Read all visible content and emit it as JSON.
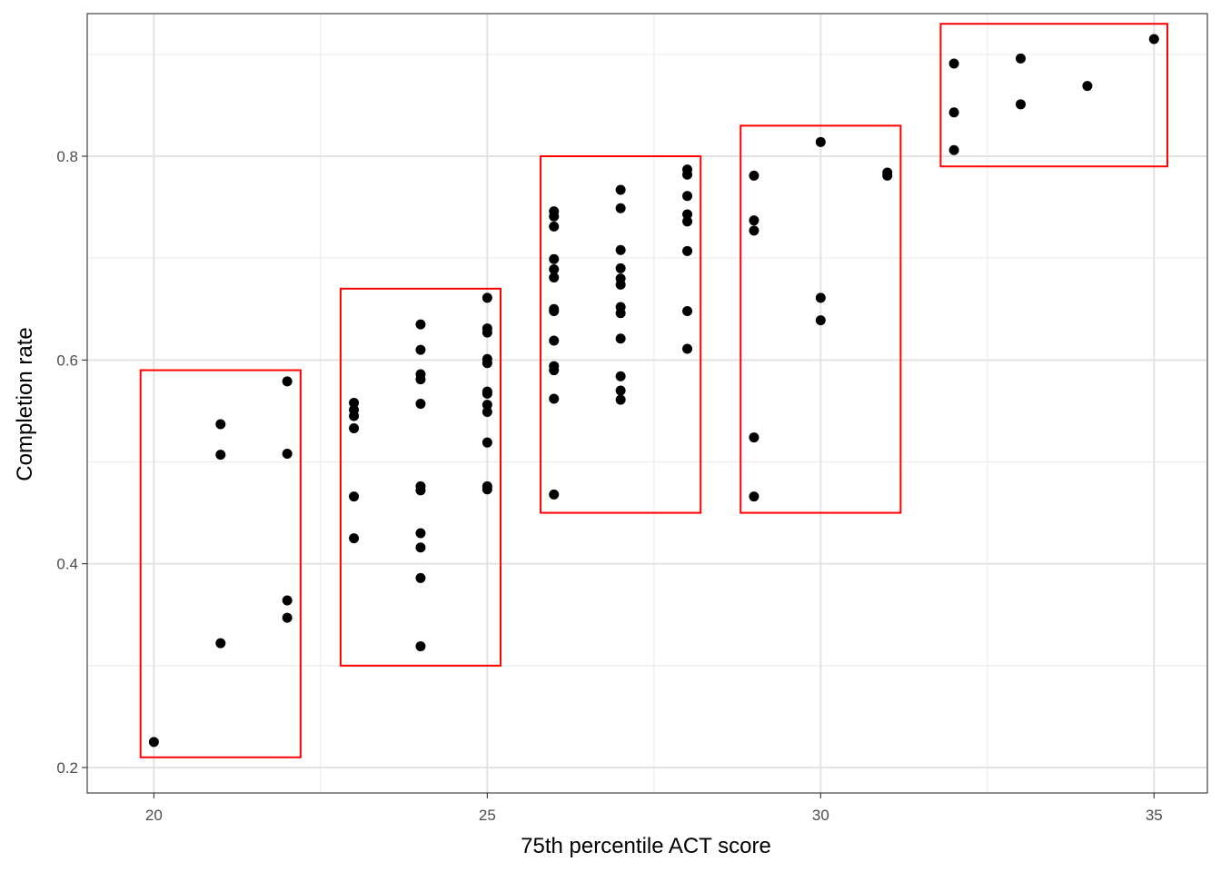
{
  "chart_data": {
    "type": "scatter",
    "title": "",
    "xlabel": "75th percentile ACT score",
    "ylabel": "Completion rate",
    "xlim": [
      19.0,
      35.8
    ],
    "ylim": [
      0.175,
      0.94
    ],
    "grid": true,
    "x_ticks": [
      20,
      25,
      30,
      35
    ],
    "x_tick_labels": [
      "20",
      "25",
      "30",
      "35"
    ],
    "x_minor_ticks": [
      22.5,
      27.5,
      32.5
    ],
    "y_ticks": [
      0.2,
      0.4,
      0.6,
      0.8
    ],
    "y_tick_labels": [
      "0.2",
      "0.4",
      "0.6",
      "0.8"
    ],
    "y_minor_ticks": [
      0.3,
      0.5,
      0.7,
      0.9
    ],
    "point_color": "#000000",
    "box_color": "#ff0000",
    "points": [
      [
        20,
        0.225
      ],
      [
        21,
        0.537
      ],
      [
        21,
        0.507
      ],
      [
        21,
        0.322
      ],
      [
        22,
        0.579
      ],
      [
        22,
        0.508
      ],
      [
        22,
        0.364
      ],
      [
        22,
        0.347
      ],
      [
        23,
        0.558
      ],
      [
        23,
        0.551
      ],
      [
        23,
        0.545
      ],
      [
        23,
        0.533
      ],
      [
        23,
        0.466
      ],
      [
        23,
        0.425
      ],
      [
        24,
        0.635
      ],
      [
        24,
        0.61
      ],
      [
        24,
        0.586
      ],
      [
        24,
        0.581
      ],
      [
        24,
        0.557
      ],
      [
        24,
        0.476
      ],
      [
        24,
        0.472
      ],
      [
        24,
        0.43
      ],
      [
        24,
        0.416
      ],
      [
        24,
        0.386
      ],
      [
        24,
        0.319
      ],
      [
        25,
        0.661
      ],
      [
        25,
        0.631
      ],
      [
        25,
        0.627
      ],
      [
        25,
        0.601
      ],
      [
        25,
        0.597
      ],
      [
        25,
        0.569
      ],
      [
        25,
        0.567
      ],
      [
        25,
        0.556
      ],
      [
        25,
        0.549
      ],
      [
        25,
        0.519
      ],
      [
        25,
        0.476
      ],
      [
        25,
        0.473
      ],
      [
        26,
        0.746
      ],
      [
        26,
        0.741
      ],
      [
        26,
        0.731
      ],
      [
        26,
        0.699
      ],
      [
        26,
        0.689
      ],
      [
        26,
        0.681
      ],
      [
        26,
        0.65
      ],
      [
        26,
        0.648
      ],
      [
        26,
        0.619
      ],
      [
        26,
        0.594
      ],
      [
        26,
        0.59
      ],
      [
        26,
        0.562
      ],
      [
        26,
        0.468
      ],
      [
        27,
        0.767
      ],
      [
        27,
        0.749
      ],
      [
        27,
        0.708
      ],
      [
        27,
        0.69
      ],
      [
        27,
        0.68
      ],
      [
        27,
        0.674
      ],
      [
        27,
        0.652
      ],
      [
        27,
        0.646
      ],
      [
        27,
        0.621
      ],
      [
        27,
        0.584
      ],
      [
        27,
        0.57
      ],
      [
        27,
        0.561
      ],
      [
        28,
        0.787
      ],
      [
        28,
        0.782
      ],
      [
        28,
        0.761
      ],
      [
        28,
        0.743
      ],
      [
        28,
        0.736
      ],
      [
        28,
        0.707
      ],
      [
        28,
        0.648
      ],
      [
        28,
        0.611
      ],
      [
        29,
        0.781
      ],
      [
        29,
        0.737
      ],
      [
        29,
        0.727
      ],
      [
        29,
        0.524
      ],
      [
        29,
        0.466
      ],
      [
        30,
        0.814
      ],
      [
        30,
        0.661
      ],
      [
        30,
        0.639
      ],
      [
        31,
        0.784
      ],
      [
        31,
        0.781
      ],
      [
        32,
        0.891
      ],
      [
        32,
        0.843
      ],
      [
        32,
        0.806
      ],
      [
        33,
        0.896
      ],
      [
        33,
        0.851
      ],
      [
        34,
        0.869
      ],
      [
        35,
        0.915
      ]
    ],
    "boxes": [
      {
        "x_min": 19.8,
        "x_max": 22.2,
        "y_min": 0.21,
        "y_max": 0.59
      },
      {
        "x_min": 22.8,
        "x_max": 25.2,
        "y_min": 0.3,
        "y_max": 0.67
      },
      {
        "x_min": 25.8,
        "x_max": 28.2,
        "y_min": 0.45,
        "y_max": 0.8
      },
      {
        "x_min": 28.8,
        "x_max": 31.2,
        "y_min": 0.45,
        "y_max": 0.83
      },
      {
        "x_min": 31.8,
        "x_max": 35.2,
        "y_min": 0.79,
        "y_max": 0.93
      }
    ]
  }
}
